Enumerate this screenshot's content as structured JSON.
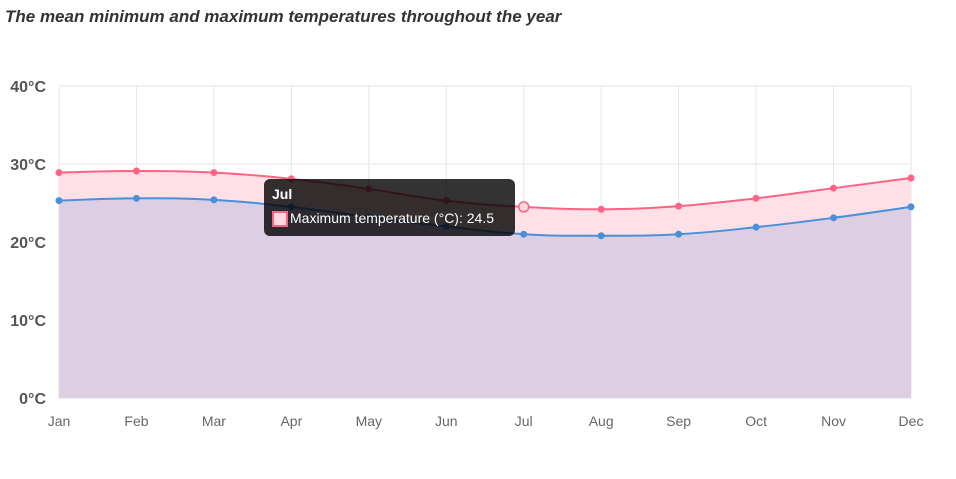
{
  "chart_data": {
    "type": "area",
    "title": "The mean minimum and maximum temperatures throughout the year",
    "categories": [
      "Jan",
      "Feb",
      "Mar",
      "Apr",
      "May",
      "Jun",
      "Jul",
      "Aug",
      "Sep",
      "Oct",
      "Nov",
      "Dec"
    ],
    "y_ticks": [
      "0°C",
      "10°C",
      "20°C",
      "30°C",
      "40°C"
    ],
    "ylim": [
      0,
      40
    ],
    "grid": true,
    "series": [
      {
        "name": "Maximum temperature (°C)",
        "color": "#ff6384",
        "fill": "#ffe0e6",
        "values": [
          28.9,
          29.1,
          28.9,
          28.1,
          26.8,
          25.3,
          24.5,
          24.2,
          24.6,
          25.6,
          26.9,
          28.2
        ]
      },
      {
        "color": "#4a90d9",
        "fill": "#dccfe3",
        "values": [
          25.3,
          25.6,
          25.4,
          24.5,
          23.2,
          22.0,
          21.0,
          20.8,
          21.0,
          21.9,
          23.1,
          24.5
        ]
      }
    ]
  },
  "tooltip": {
    "title": "Jul",
    "body": "Maximum temperature (°C): 24.5",
    "series_index": 0,
    "category_index": 6
  }
}
